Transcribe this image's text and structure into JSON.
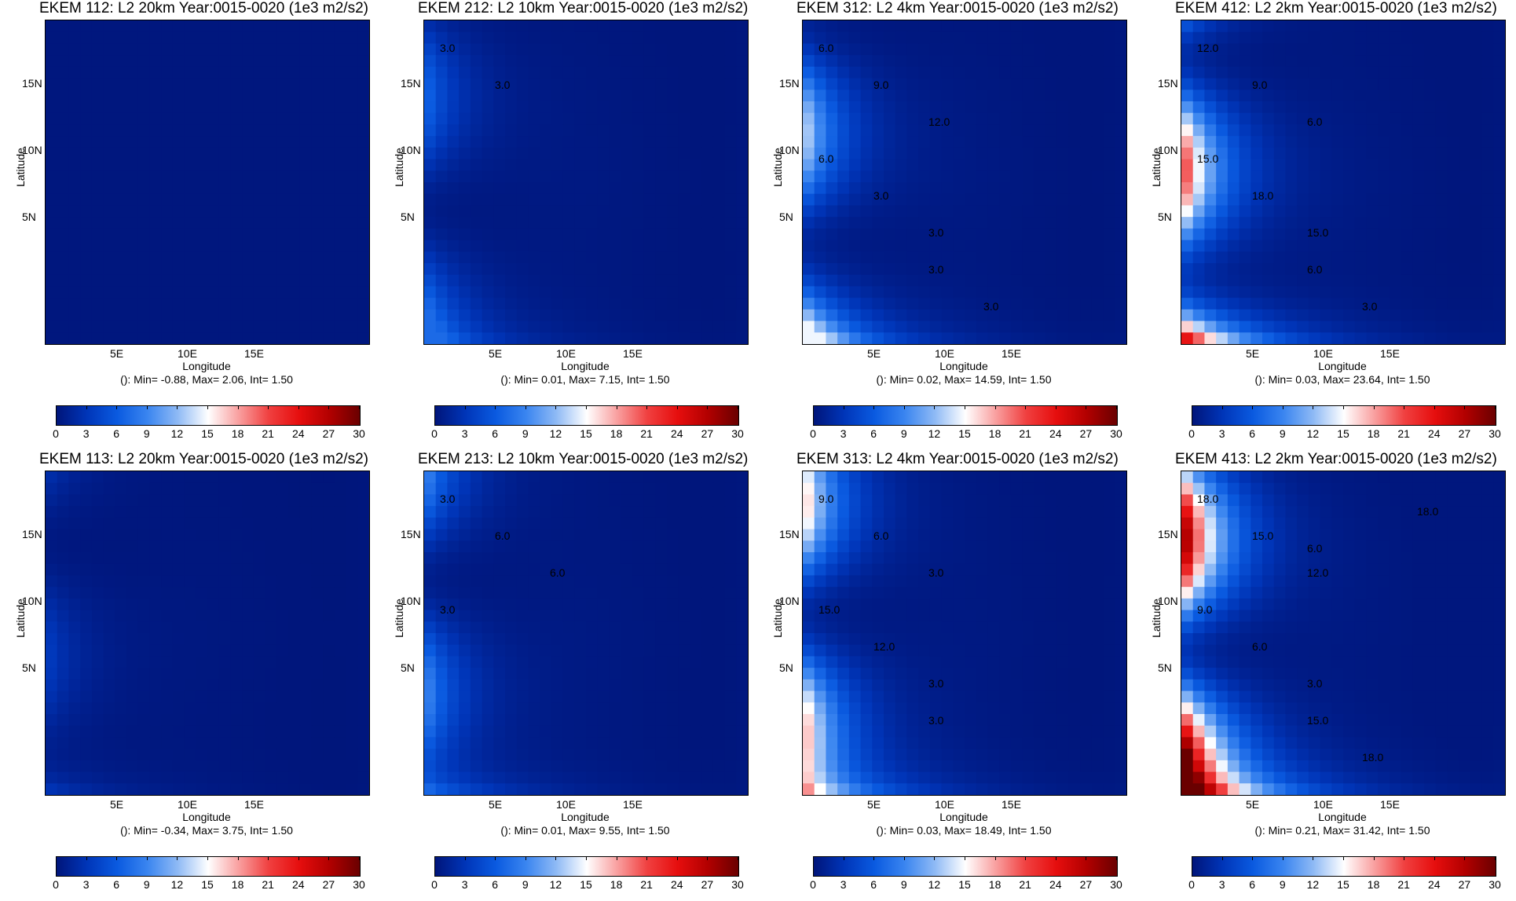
{
  "colorbar": {
    "ticks": [
      "0",
      "3",
      "6",
      "9",
      "12",
      "15",
      "18",
      "21",
      "24",
      "27",
      "30"
    ],
    "min": 0,
    "max": 30,
    "colors": [
      "#00157a",
      "#0035b8",
      "#0a5ae0",
      "#3a85f0",
      "#8fbaf5",
      "#ffffff",
      "#f9a0a0",
      "#f04040",
      "#e60e0e",
      "#b20000",
      "#6a0000"
    ]
  },
  "axis": {
    "ylabel": "Latitude",
    "xlabel": "Longitude",
    "yticks": [
      "15N",
      "10N",
      "5N"
    ],
    "xticks": [
      "5E",
      "10E",
      "15E"
    ]
  },
  "chart_data": [
    {
      "type": "heatmap",
      "title": "EKEM 112: L2 20km Year:0015-0020 (1e3 m2/s2)",
      "stats": "(): Min= -0.88, Max= 2.06, Int= 1.50",
      "min": -0.88,
      "max": 2.06,
      "xlabel": "Longitude",
      "ylabel": "Latitude",
      "contour_labels": []
    },
    {
      "type": "heatmap",
      "title": "EKEM 212: L2 10km Year:0015-0020 (1e3 m2/s2)",
      "stats": "(): Min= 0.01, Max= 7.15, Int= 1.50",
      "min": 0.01,
      "max": 7.15,
      "xlabel": "Longitude",
      "ylabel": "Latitude",
      "contour_labels": [
        "3.0",
        "3.0"
      ]
    },
    {
      "type": "heatmap",
      "title": "EKEM 312: L2 4km Year:0015-0020 (1e3 m2/s2)",
      "stats": "(): Min= 0.02, Max= 14.59, Int= 1.50",
      "min": 0.02,
      "max": 14.59,
      "xlabel": "Longitude",
      "ylabel": "Latitude",
      "contour_labels": [
        "6.0",
        "9.0",
        "12.0",
        "6.0",
        "3.0",
        "3.0",
        "3.0",
        "3.0"
      ]
    },
    {
      "type": "heatmap",
      "title": "EKEM 412: L2 2km Year:0015-0020 (1e3 m2/s2)",
      "stats": "(): Min= 0.03, Max= 23.64, Int= 1.50",
      "min": 0.03,
      "max": 23.64,
      "xlabel": "Longitude",
      "ylabel": "Latitude",
      "contour_labels": [
        "12.0",
        "9.0",
        "6.0",
        "15.0",
        "18.0",
        "15.0",
        "6.0",
        "3.0"
      ]
    },
    {
      "type": "heatmap",
      "title": "EKEM 113: L2 20km Year:0015-0020 (1e3 m2/s2)",
      "stats": "(): Min= -0.34, Max= 3.75, Int= 1.50",
      "min": -0.34,
      "max": 3.75,
      "xlabel": "Longitude",
      "ylabel": "Latitude",
      "contour_labels": []
    },
    {
      "type": "heatmap",
      "title": "EKEM 213: L2 10km Year:0015-0020 (1e3 m2/s2)",
      "stats": "(): Min= 0.01, Max= 9.55, Int= 1.50",
      "min": 0.01,
      "max": 9.55,
      "xlabel": "Longitude",
      "ylabel": "Latitude",
      "contour_labels": [
        "3.0",
        "6.0",
        "6.0",
        "3.0"
      ]
    },
    {
      "type": "heatmap",
      "title": "EKEM 313: L2 4km Year:0015-0020 (1e3 m2/s2)",
      "stats": "(): Min= 0.03, Max= 18.49, Int= 1.50",
      "min": 0.03,
      "max": 18.49,
      "xlabel": "Longitude",
      "ylabel": "Latitude",
      "contour_labels": [
        "9.0",
        "6.0",
        "3.0",
        "15.0",
        "12.0",
        "3.0",
        "3.0"
      ]
    },
    {
      "type": "heatmap",
      "title": "EKEM 413: L2 2km Year:0015-0020 (1e3 m2/s2)",
      "stats": "(): Min= 0.21, Max= 31.42, Int= 1.50",
      "min": 0.21,
      "max": 31.42,
      "xlabel": "Longitude",
      "ylabel": "Latitude",
      "contour_labels": [
        "18.0",
        "15.0",
        "12.0",
        "9.0",
        "6.0",
        "3.0",
        "15.0",
        "18.0",
        "18.0",
        "6.0"
      ]
    }
  ]
}
